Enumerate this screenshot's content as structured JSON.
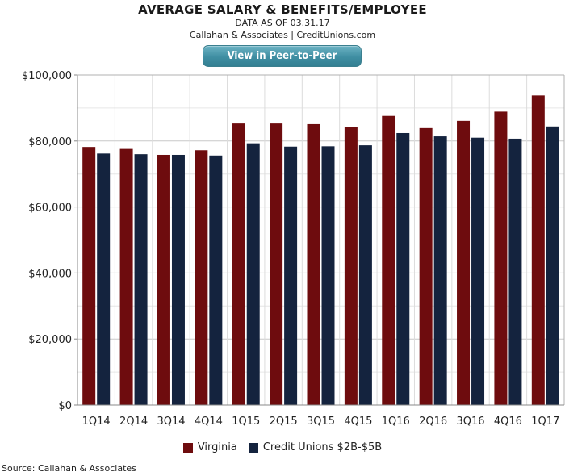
{
  "header": {
    "title": "AVERAGE SALARY & BENEFITS/EMPLOYEE",
    "subtitle": "DATA AS OF 03.31.17",
    "byline": "Callahan & Associates | CreditUnions.com",
    "cta_label": "View in Peer-to-Peer"
  },
  "footer": {
    "source": "Source: Callahan & Associates"
  },
  "colors": {
    "virginia": "#6e0c0e",
    "credit_unions": "#14233e",
    "button": "#4a97aa"
  },
  "chart_data": {
    "type": "bar",
    "title": "AVERAGE SALARY & BENEFITS/EMPLOYEE",
    "xlabel": "",
    "ylabel": "",
    "categories": [
      "1Q14",
      "2Q14",
      "3Q14",
      "4Q14",
      "1Q15",
      "2Q15",
      "3Q15",
      "4Q15",
      "1Q16",
      "2Q16",
      "3Q16",
      "4Q16",
      "1Q17"
    ],
    "series": [
      {
        "name": "Virginia",
        "color": "#6e0c0e",
        "values": [
          78200,
          77600,
          75800,
          77200,
          85300,
          85300,
          85100,
          84200,
          87600,
          83900,
          86100,
          88900,
          93800
        ]
      },
      {
        "name": "Credit Unions $2B-$5B",
        "color": "#14233e",
        "values": [
          76200,
          76000,
          75800,
          75600,
          79300,
          78300,
          78400,
          78700,
          82400,
          81400,
          81000,
          80700,
          84400
        ]
      }
    ],
    "ylim": [
      0,
      100000
    ],
    "yticks": [
      0,
      20000,
      40000,
      60000,
      80000,
      100000
    ],
    "ytick_labels": [
      "$0",
      "$20,000",
      "$40,000",
      "$60,000",
      "$80,000",
      "$100,000"
    ],
    "grid": true,
    "legend": "bottom"
  }
}
